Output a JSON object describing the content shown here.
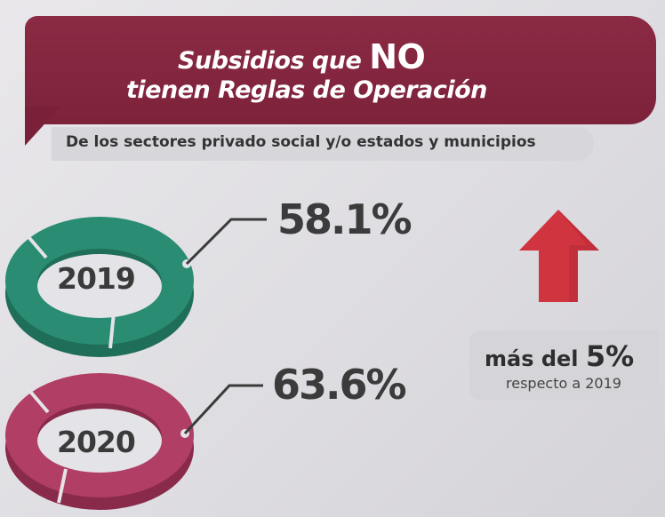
{
  "title": {
    "line1_prefix": "Subsidios que",
    "line1_emphasis": "NO",
    "line2": "tienen Reglas de Operación"
  },
  "subtitle": "De los sectores privado social y/o estados y municipios",
  "items": [
    {
      "year": "2019",
      "percent_label": "58.1%",
      "percent": 58.1,
      "color": "#2a8c73"
    },
    {
      "year": "2020",
      "percent_label": "63.6%",
      "percent": 63.6,
      "color": "#b03e65"
    }
  ],
  "increase": {
    "main_prefix": "más del",
    "main_value": "5%",
    "sub": "respecto a 2019",
    "arrow_color": "#d0343f"
  },
  "colors": {
    "banner": "#82253e",
    "subtitle_bg": "#d7d6da",
    "text_dark": "#3b3b3b"
  }
}
